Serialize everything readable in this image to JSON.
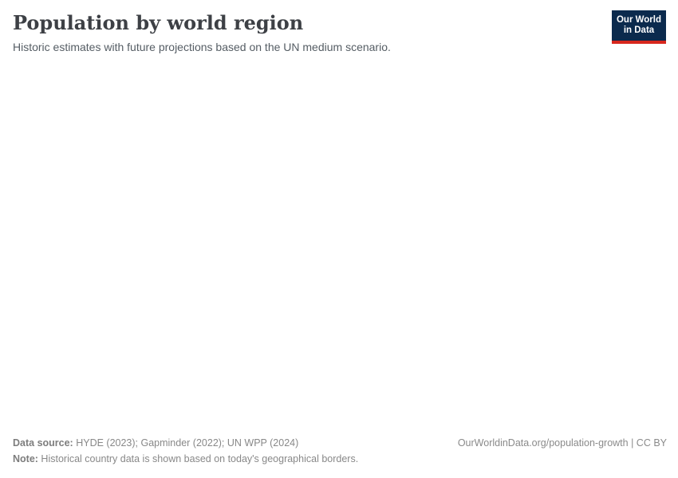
{
  "header": {
    "title": "Population by world region",
    "subtitle": "Historic estimates with future projections based on the UN medium scenario.",
    "logo": {
      "line1": "Our World",
      "line2": "in Data"
    }
  },
  "footer": {
    "data_source_label": "Data source:",
    "data_source_value": " HYDE (2023); Gapminder (2022); UN WPP (2024)",
    "note_label": "Note:",
    "note_value": " Historical country data is shown based on today's geographical borders.",
    "link": "OurWorldinData.org/population-growth | CC BY"
  },
  "colors": {
    "logo_navy": "#0b2a4d",
    "logo_red": "#d7271d",
    "title": "#3d4045",
    "subtitle": "#555d64",
    "footer_text": "#888888"
  },
  "chart_data": {
    "type": "line",
    "title": "Population by world region",
    "subtitle": "Historic estimates with future projections based on the UN medium scenario.",
    "series": [],
    "plot_area_rendered": false
  }
}
